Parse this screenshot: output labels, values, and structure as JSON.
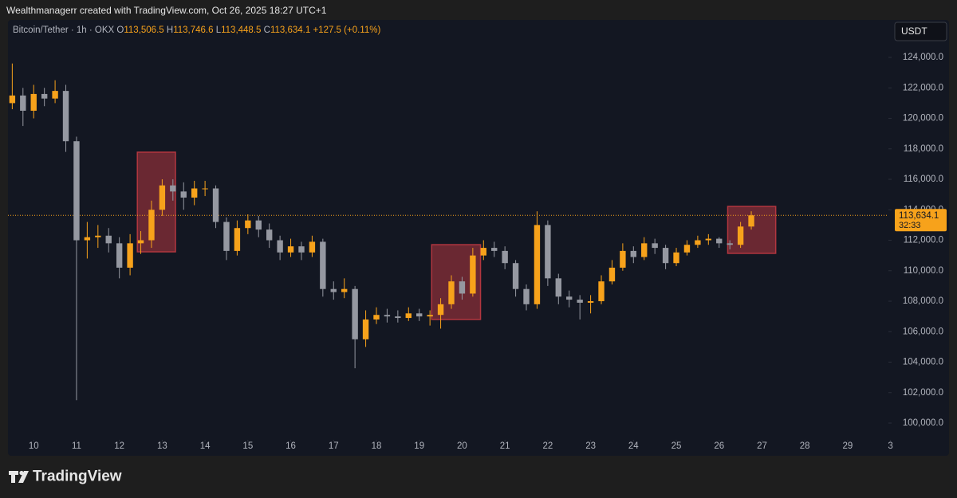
{
  "header": "Wealthmanagerr created with TradingView.com, Oct 26, 2025 18:27 UTC+1",
  "footer": {
    "logo_text": "TradingView"
  },
  "chart_data": {
    "type": "candlestick",
    "symbol": "Bitcoin/Tether · 1h · OKX",
    "legend": [
      {
        "label": "O",
        "value": "113,506.5"
      },
      {
        "label": "H",
        "value": "113,746.6"
      },
      {
        "label": "L",
        "value": "113,448.5"
      },
      {
        "label": "C",
        "value": "113,634.1"
      }
    ],
    "change": "+127.5 (+0.11%)",
    "currency": "USDT",
    "up_color": "#f7a21b",
    "down_color": "#9598a1",
    "x": [
      9.5,
      9.75,
      10,
      10.25,
      10.5,
      10.75,
      11,
      11.25,
      11.5,
      11.75,
      12,
      12.25,
      12.5,
      12.75,
      13,
      13.25,
      13.5,
      13.75,
      14,
      14.25,
      14.5,
      14.75,
      15,
      15.25,
      15.5,
      15.75,
      16,
      16.25,
      16.5,
      16.75,
      17,
      17.25,
      17.5,
      17.75,
      18,
      18.25,
      18.5,
      18.75,
      19,
      19.25,
      19.5,
      19.75,
      20,
      20.25,
      20.5,
      20.75,
      21,
      21.25,
      21.5,
      21.75,
      22,
      22.25,
      22.5,
      22.75,
      23,
      23.25,
      23.5,
      23.75,
      24,
      24.25,
      24.5,
      24.75,
      25,
      25.25,
      25.5,
      25.75,
      26,
      26.25,
      26.5,
      26.75
    ],
    "open": [
      121000,
      121500,
      120500,
      121600,
      121300,
      121800,
      118500,
      112000,
      112200,
      112300,
      111800,
      110200,
      111800,
      112000,
      114000,
      115600,
      115200,
      114800,
      115400,
      115400,
      113200,
      111300,
      112800,
      113300,
      112700,
      112000,
      111200,
      111600,
      111200,
      111900,
      108800,
      108600,
      108800,
      105500,
      106800,
      107100,
      107000,
      106900,
      107200,
      107000,
      107100,
      107800,
      109300,
      108500,
      111000,
      111500,
      111300,
      110500,
      108800,
      107800,
      113000,
      109500,
      108300,
      108100,
      107900,
      108000,
      109300,
      110200,
      111300,
      110900,
      111800,
      111500,
      110500,
      111200,
      111700,
      112000,
      112100,
      111800,
      111700,
      112900
    ],
    "high": [
      123600,
      122000,
      122200,
      122000,
      122500,
      122200,
      118800,
      113200,
      113000,
      112800,
      112200,
      112400,
      112600,
      114600,
      116000,
      116000,
      115800,
      115900,
      115900,
      115600,
      113500,
      113300,
      113700,
      113600,
      113100,
      112300,
      112100,
      111900,
      112300,
      112100,
      109300,
      109500,
      109000,
      107400,
      107600,
      107500,
      107400,
      107600,
      107500,
      107400,
      108200,
      109700,
      109600,
      111500,
      112000,
      111900,
      111600,
      110700,
      109100,
      113900,
      113300,
      109800,
      108700,
      108400,
      108400,
      109700,
      110700,
      111800,
      111600,
      112200,
      112100,
      111700,
      111500,
      112000,
      112300,
      112400,
      112200,
      112000,
      113200,
      113900
    ],
    "low": [
      120600,
      119500,
      120000,
      120800,
      121000,
      117800,
      101500,
      110800,
      111500,
      111200,
      109500,
      109700,
      111100,
      111500,
      113600,
      114600,
      114000,
      114300,
      114900,
      112800,
      110700,
      111000,
      112400,
      112200,
      111500,
      110700,
      110900,
      110700,
      110900,
      108300,
      108100,
      108200,
      103600,
      105000,
      106500,
      106600,
      106600,
      106700,
      106700,
      106400,
      106200,
      107500,
      108100,
      108300,
      110700,
      110900,
      110100,
      108300,
      107400,
      107500,
      109000,
      107800,
      107600,
      106800,
      107200,
      107800,
      109100,
      110000,
      110500,
      110700,
      111100,
      110100,
      110300,
      111000,
      111500,
      111700,
      111500,
      111400,
      111500,
      112700
    ],
    "close": [
      121500,
      120500,
      121600,
      121300,
      121800,
      118500,
      112000,
      112200,
      112300,
      111800,
      110200,
      111800,
      112000,
      114000,
      115600,
      115200,
      114800,
      115400,
      115400,
      113200,
      111300,
      112800,
      113300,
      112700,
      112000,
      111200,
      111600,
      111200,
      111900,
      108800,
      108600,
      108800,
      105500,
      106800,
      107100,
      107000,
      106900,
      107200,
      107000,
      107100,
      107800,
      109300,
      108500,
      111000,
      111500,
      111300,
      110500,
      108800,
      107800,
      113000,
      109500,
      108300,
      108100,
      107900,
      108000,
      109300,
      110200,
      111300,
      110900,
      111800,
      111500,
      110500,
      111200,
      111700,
      112000,
      112100,
      111800,
      111700,
      112900,
      113634.1
    ],
    "boxes": [
      {
        "x": [
          12.42,
          13.31
        ],
        "y": [
          111240,
          117780
        ]
      },
      {
        "x": [
          19.29,
          20.43
        ],
        "y": [
          106800,
          111710
        ]
      },
      {
        "x": [
          26.2,
          27.32
        ],
        "y": [
          111140,
          114220
        ]
      }
    ],
    "box_color": "#b2363f",
    "last_price": {
      "value": 113634.1,
      "label": "113,634.1"
    },
    "countdown": "32:33",
    "xlim": [
      9.4,
      30.1
    ],
    "xticks": [
      10,
      11,
      12,
      13,
      14,
      15,
      16,
      17,
      18,
      19,
      20,
      21,
      22,
      23,
      24,
      25,
      26,
      27,
      28,
      29,
      {
        "value": 30,
        "label": "3"
      }
    ],
    "ylim": [
      97960,
      126460
    ],
    "yticks": [
      {
        "value": 100000,
        "label": "100,000.0"
      },
      {
        "value": 102000,
        "label": "102,000.0"
      },
      {
        "value": 104000,
        "label": "104,000.0"
      },
      {
        "value": 106000,
        "label": "106,000.0"
      },
      {
        "value": 108000,
        "label": "108,000.0"
      },
      {
        "value": 110000,
        "label": "110,000.0"
      },
      {
        "value": 112000,
        "label": "112,000.0"
      },
      {
        "value": 114000,
        "label": "114,000.0"
      },
      {
        "value": 116000,
        "label": "116,000.0"
      },
      {
        "value": 118000,
        "label": "118,000.0"
      },
      {
        "value": 120000,
        "label": "120,000.0"
      },
      {
        "value": 122000,
        "label": "122,000.0"
      },
      {
        "value": 124000,
        "label": "124,000.0"
      }
    ]
  }
}
